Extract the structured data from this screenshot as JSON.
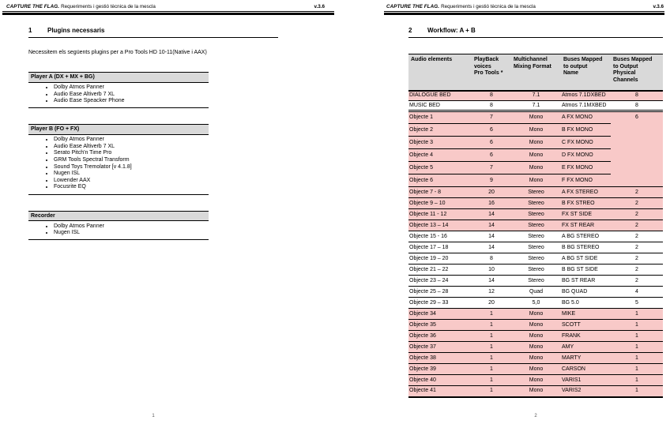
{
  "colors": {
    "row_highlight_pink": "#f8c9c8",
    "table_header_gray": "#d9d9d9"
  },
  "page1": {
    "header": {
      "brand": "CAPTURE THE FLAG.",
      "subtitle": "Requeriments i gestió tècnica de la mescla",
      "version": "v.3.6"
    },
    "section_number": "1",
    "section_title": "Plugins necessaris",
    "intro": "Necessitem els següents plugins per a Pro Tools HD 10-11(Native i AAX)",
    "plugin_groups": [
      {
        "title": "Player A (DX + MX + BG)",
        "items": [
          "Dolby Atmos Panner",
          "Audio Ease Altiverb 7 XL",
          "Audio Ease Speacker Phone"
        ]
      },
      {
        "title": "Player B (FO + FX)",
        "items": [
          "Dolby Atmos Panner",
          "Audio Ease Altiverb 7 XL",
          "Serato Pitch'n Time Pro",
          "GRM Tools Spectral Transform",
          "Sound Toys Tremolator [v 4.1.8]",
          "Nugen ISL",
          "Lowender AAX",
          "Focusrite EQ"
        ]
      },
      {
        "title": "Recorder",
        "items": [
          "Dolby Atmos Panner",
          "Nugen ISL"
        ]
      }
    ],
    "page_number": "1"
  },
  "page2": {
    "header": {
      "brand": "CAPTURE THE FLAG.",
      "subtitle": "Requeriments i gestió tècnica de la mescla",
      "version": "v.3.6"
    },
    "section_number": "2",
    "section_title": "Workflow: A + B",
    "table": {
      "columns": [
        "Audio elements",
        "PlayBack\nvoices\nPro Tools *",
        "Multichannel\nMixing Format",
        "Buses Mapped\nto output\nName",
        "Buses Mapped\nto Output\nPhysical\nChannels"
      ],
      "rows": [
        {
          "element": "DIALOGUE BED",
          "voices": "8",
          "format": "7.1",
          "bus": "Atmos 7.1DXBED",
          "channels": "8",
          "pink": true,
          "size": "bed"
        },
        {
          "element": "MUSIC BED",
          "voices": "8",
          "format": "7.1",
          "bus": "Atmos 7.1MXBED",
          "channels": "8",
          "pink": false,
          "size": "bed",
          "sep": "double"
        },
        {
          "element": "Objecte 1",
          "voices": "7",
          "format": "Mono",
          "bus": "A FX MONO",
          "channels": "6",
          "channels_rowspan": 6,
          "pink": true,
          "size": "tall"
        },
        {
          "element": "Objecte 2",
          "voices": "6",
          "format": "Mono",
          "bus": "B FX MONO",
          "channels": null,
          "pink": true,
          "size": "tall"
        },
        {
          "element": "Objecte 3",
          "voices": "6",
          "format": "Mono",
          "bus": "C FX MONO",
          "channels": null,
          "pink": true,
          "size": "tall"
        },
        {
          "element": "Objecte 4",
          "voices": "6",
          "format": "Mono",
          "bus": "D FX MONO",
          "channels": null,
          "pink": true,
          "size": "tall"
        },
        {
          "element": "Objecte 5",
          "voices": "7",
          "format": "Mono",
          "bus": "E FX MONO",
          "channels": null,
          "pink": true,
          "size": "tall"
        },
        {
          "element": "Objecte 6",
          "voices": "9",
          "format": "Mono",
          "bus": "F FX MONO",
          "channels": null,
          "pink": true,
          "size": "tall"
        },
        {
          "element": "Objecte 7 - 8",
          "voices": "20",
          "format": "Stereo",
          "bus": "A FX STEREO",
          "channels": "2",
          "pink": true
        },
        {
          "element": "Objecte 9 – 10",
          "voices": "16",
          "format": "Stereo",
          "bus": "B FX STREO",
          "channels": "2",
          "pink": true
        },
        {
          "element": "Objecte 11 - 12",
          "voices": "14",
          "format": "Stereo",
          "bus": "FX ST SIDE",
          "channels": "2",
          "pink": true
        },
        {
          "element": "Objecte 13 – 14",
          "voices": "14",
          "format": "Stereo",
          "bus": "FX ST REAR",
          "channels": "2",
          "pink": true
        },
        {
          "element": "Objecte 15 - 16",
          "voices": "14",
          "format": "Stereo",
          "bus": "A BG STEREO",
          "channels": "2",
          "pink": false
        },
        {
          "element": "Objecte 17 – 18",
          "voices": "14",
          "format": "Stereo",
          "bus": "B BG STEREO",
          "channels": "2",
          "pink": false
        },
        {
          "element": "Objecte 19 – 20",
          "voices": "8",
          "format": "Stereo",
          "bus": "A BG ST SIDE",
          "channels": "2",
          "pink": false
        },
        {
          "element": "Objecte 21 – 22",
          "voices": "10",
          "format": "Stereo",
          "bus": "B BG ST SIDE",
          "channels": "2",
          "pink": false
        },
        {
          "element": "Objecte 23 – 24",
          "voices": "14",
          "format": "Stereo",
          "bus": "BG ST REAR",
          "channels": "2",
          "pink": false
        },
        {
          "element": "Objecte 25 – 28",
          "voices": "12",
          "format": "Quad",
          "bus": "BG QUAD",
          "channels": "4",
          "pink": false
        },
        {
          "element": "Objecte 29 – 33",
          "voices": "20",
          "format": "5,0",
          "bus": "BG 5.0",
          "channels": "5",
          "pink": false
        },
        {
          "element": "Objecte 34",
          "voices": "1",
          "format": "Mono",
          "bus": "MIKE",
          "channels": "1",
          "pink": true
        },
        {
          "element": "Objecte 35",
          "voices": "1",
          "format": "Mono",
          "bus": "SCOTT",
          "channels": "1",
          "pink": true
        },
        {
          "element": "Objecte 36",
          "voices": "1",
          "format": "Mono",
          "bus": "FRANK",
          "channels": "1",
          "pink": true
        },
        {
          "element": "Objecte 37",
          "voices": "1",
          "format": "Mono",
          "bus": "AMY",
          "channels": "1",
          "pink": true
        },
        {
          "element": "Objecte 38",
          "voices": "1",
          "format": "Mono",
          "bus": "MARTY",
          "channels": "1",
          "pink": true
        },
        {
          "element": "Objecte 39",
          "voices": "1",
          "format": "Mono",
          "bus": "CARSON",
          "channels": "1",
          "pink": true
        },
        {
          "element": "Objecte 40",
          "voices": "1",
          "format": "Mono",
          "bus": "VARIS1",
          "channels": "1",
          "pink": true
        },
        {
          "element": "Objecte 41",
          "voices": "1",
          "format": "Mono",
          "bus": "VARIS2",
          "channels": "1",
          "pink": true,
          "sep": "last"
        }
      ]
    },
    "page_number": "2"
  }
}
